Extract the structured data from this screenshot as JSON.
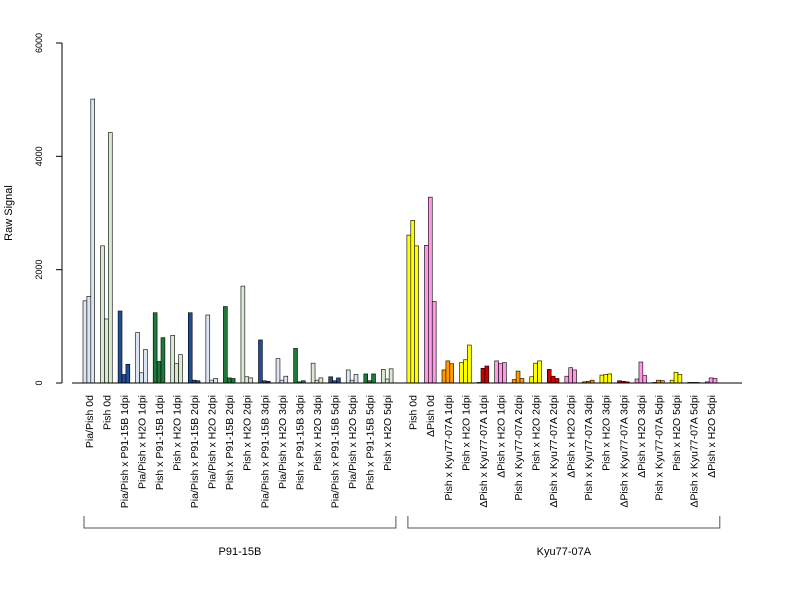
{
  "chart_data": {
    "type": "bar",
    "ylabel": "Raw Signal",
    "ylim": [
      0,
      6000
    ],
    "yticks": [
      "0",
      "2000",
      "4000",
      "6000"
    ],
    "categories": [
      "Pia/Pish 0d",
      "Pish 0d",
      "Pia/Pish x P91-15B 1dpi",
      "Pia/Pish x H2O 1dpi",
      "Pish x P91-15B 1dpi",
      "Pish x H2O 1dpi",
      "Pia/Pish x P91-15B 2dpi",
      "Pia/Pish x H2O 2dpi",
      "Pish x P91-15B 2dpi",
      "Pish x H2O 2dpi",
      "Pia/Pish x P91-15B 3dpi",
      "Pia/Pish x H2O 3dpi",
      "Pish x P91-15B 3dpi",
      "Pish x H2O 3dpi",
      "Pia/Pish x P91-15B 5dpi",
      "Pia/Pish x H2O 5dpi",
      "Pish x P91-15B 5dpi",
      "Pish x H2O 5dpi",
      "Pish 0d",
      "ΔPish 0d",
      "Pish x Kyu77-07A 1dpi",
      "Pish x H2O 1dpi",
      "ΔPish x Kyu77-07A 1dpi",
      "ΔPish x H2O 1dpi",
      "Pish x Kyu77-07A 2dpi",
      "Pish x H2O 2dpi",
      "ΔPish x Kyu77-07A 2dpi",
      "ΔPish x H2O 2dpi",
      "Pish x Kyu77-07A 3dpi",
      "Pish x H2O 3dpi",
      "ΔPish x Kyu77-07A 3dpi",
      "ΔPish x H2O 3dpi",
      "Pish x Kyu77-07A 5dpi",
      "Pish x H2O 5dpi",
      "ΔPish x Kyu77-07A 5dpi",
      "ΔPish x H2O 5dpi"
    ],
    "colors": [
      "#dce6f2",
      "#d9ead3",
      "#1f4e96",
      "#dce6f2",
      "#1f7a3a",
      "#d9ead3",
      "#1f4e96",
      "#dce6f2",
      "#1f7a3a",
      "#d9ead3",
      "#1f4e96",
      "#dce6f2",
      "#1f7a3a",
      "#d9ead3",
      "#1f4e96",
      "#dce6f2",
      "#1f7a3a",
      "#d9ead3",
      "#ffff00",
      "#ff99e6",
      "#ff9900",
      "#ffff00",
      "#cc0000",
      "#ff99e6",
      "#ff9900",
      "#ffff00",
      "#cc0000",
      "#ff99e6",
      "#ff9900",
      "#ffff00",
      "#cc0000",
      "#ff99e6",
      "#ff9900",
      "#ffff00",
      "#cc0000",
      "#ff99e6"
    ],
    "values": [
      [
        1450,
        1530,
        5010
      ],
      [
        2420,
        1130,
        4420
      ],
      [
        1270,
        150,
        330
      ],
      [
        890,
        180,
        590
      ],
      [
        1240,
        380,
        800
      ],
      [
        840,
        340,
        500
      ],
      [
        1240,
        50,
        40
      ],
      [
        1200,
        50,
        80
      ],
      [
        1350,
        90,
        80
      ],
      [
        1710,
        110,
        90
      ],
      [
        760,
        40,
        30
      ],
      [
        430,
        50,
        120
      ],
      [
        610,
        20,
        40
      ],
      [
        350,
        50,
        90
      ],
      [
        110,
        40,
        90
      ],
      [
        230,
        50,
        150
      ],
      [
        160,
        40,
        160
      ],
      [
        240,
        70,
        250
      ],
      [
        2610,
        2870,
        2420
      ],
      [
        2430,
        3280,
        1440
      ],
      [
        230,
        390,
        340
      ],
      [
        360,
        410,
        670
      ],
      [
        10,
        260,
        300
      ],
      [
        390,
        340,
        360
      ],
      [
        60,
        210,
        80
      ],
      [
        110,
        350,
        390
      ],
      [
        240,
        120,
        80
      ],
      [
        120,
        270,
        230
      ],
      [
        20,
        30,
        50
      ],
      [
        140,
        150,
        160
      ],
      [
        40,
        30,
        20
      ],
      [
        70,
        370,
        130
      ],
      [
        10,
        50,
        40
      ],
      [
        50,
        190,
        150
      ],
      [
        10,
        10,
        10
      ],
      [
        20,
        90,
        80
      ]
    ],
    "groups": [
      {
        "name": "P91-15B",
        "start": 0,
        "end": 17
      },
      {
        "name": "Kyu77-07A",
        "start": 18,
        "end": 35
      }
    ]
  }
}
